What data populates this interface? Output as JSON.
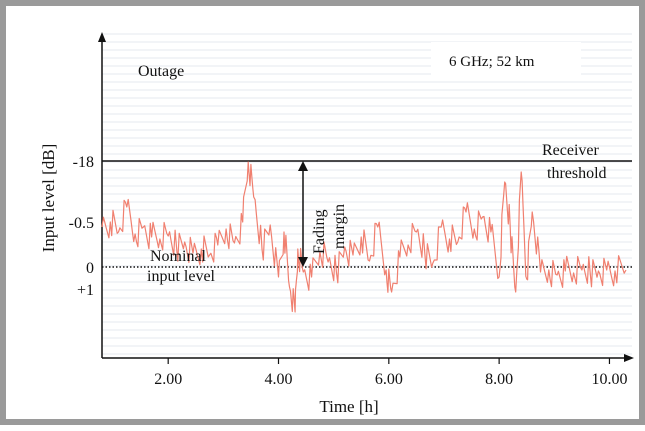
{
  "chart_data": {
    "type": "line",
    "title": "",
    "xlabel": "Time [h]",
    "ylabel": "Input level  [dB]",
    "x_ticks": [
      "2.00",
      "4.00",
      "6.00",
      "8.00",
      "10.00"
    ],
    "x_tick_values": [
      2,
      4,
      6,
      8,
      10
    ],
    "y_ticks": [
      "-18",
      "-0.5",
      "0",
      "+1"
    ],
    "xlim": [
      0.8,
      10.3
    ],
    "grid": "horizontal",
    "annotations": {
      "outage": "Outage",
      "info": "6 GHz; 52 km",
      "receiver_threshold_line1": "Receiver",
      "receiver_threshold_line2": "threshold",
      "fading_margin_line1": "Fading",
      "fading_margin_line2": "margin",
      "nominal_line1": "Nominal",
      "nominal_line2": "input level"
    },
    "reference_lines": [
      {
        "label": "-18",
        "style": "solid"
      },
      {
        "label": "0",
        "style": "dotted"
      }
    ],
    "series": [
      {
        "color": "#f08070",
        "x": [
          0.8,
          0.95,
          1.1,
          1.25,
          1.4,
          1.55,
          1.7,
          1.85,
          2.0,
          2.15,
          2.3,
          2.45,
          2.6,
          2.75,
          2.9,
          3.05,
          3.2,
          3.35,
          3.45,
          3.55,
          3.7,
          3.85,
          4.0,
          4.1,
          4.2,
          4.3,
          4.35,
          4.45,
          4.6,
          4.75,
          4.9,
          5.05,
          5.2,
          5.35,
          5.5,
          5.65,
          5.8,
          5.95,
          6.05,
          6.2,
          6.35,
          6.5,
          6.65,
          6.8,
          6.95,
          7.1,
          7.25,
          7.4,
          7.55,
          7.7,
          7.85,
          8.0,
          8.1,
          8.2,
          8.3,
          8.4,
          8.5,
          8.6,
          8.75,
          8.9,
          9.05,
          9.2,
          9.35,
          9.5,
          9.65,
          9.8,
          9.95,
          10.1,
          10.3
        ],
        "y": [
          40,
          45,
          35,
          60,
          33,
          40,
          30,
          28,
          31,
          20,
          25,
          14,
          18,
          12,
          22,
          38,
          24,
          45,
          105,
          70,
          18,
          42,
          -10,
          35,
          -20,
          -45,
          18,
          -5,
          -10,
          15,
          5,
          -5,
          20,
          12,
          30,
          6,
          40,
          -3,
          -25,
          10,
          22,
          35,
          15,
          4,
          40,
          28,
          25,
          55,
          38,
          50,
          35,
          -10,
          85,
          40,
          -25,
          95,
          -12,
          55,
          -5,
          -3,
          -8,
          -4,
          -6,
          -3,
          -5,
          -4,
          -3,
          -4,
          -3
        ]
      }
    ]
  }
}
